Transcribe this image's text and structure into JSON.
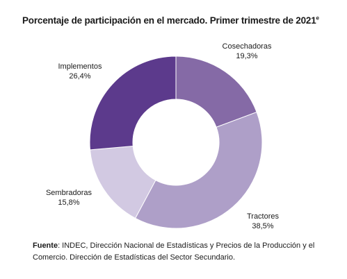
{
  "chart_data": {
    "type": "pie",
    "variant": "donut",
    "title": "Porcentaje de participación en el mercado. Primer trimestre de 2021",
    "title_superscript": "e",
    "slices": [
      {
        "label": "Cosechadoras",
        "value": 19.3,
        "display": "19,3%",
        "color": "#856aa6"
      },
      {
        "label": "Tractores",
        "value": 38.5,
        "display": "38,5%",
        "color": "#ae9fc8"
      },
      {
        "label": "Sembradoras",
        "value": 15.8,
        "display": "15,8%",
        "color": "#d2c9e2"
      },
      {
        "label": "Implementos",
        "value": 26.4,
        "display": "26,4%",
        "color": "#5c3a8c"
      }
    ],
    "start_angle_deg": 0,
    "direction": "clockwise",
    "legend": "none"
  },
  "source": {
    "label": "Fuente",
    "text": ": INDEC, Dirección Nacional de Estadísticas y Precios de la Producción y el Comercio. Dirección de Estadísticas  del Sector Secundario."
  }
}
